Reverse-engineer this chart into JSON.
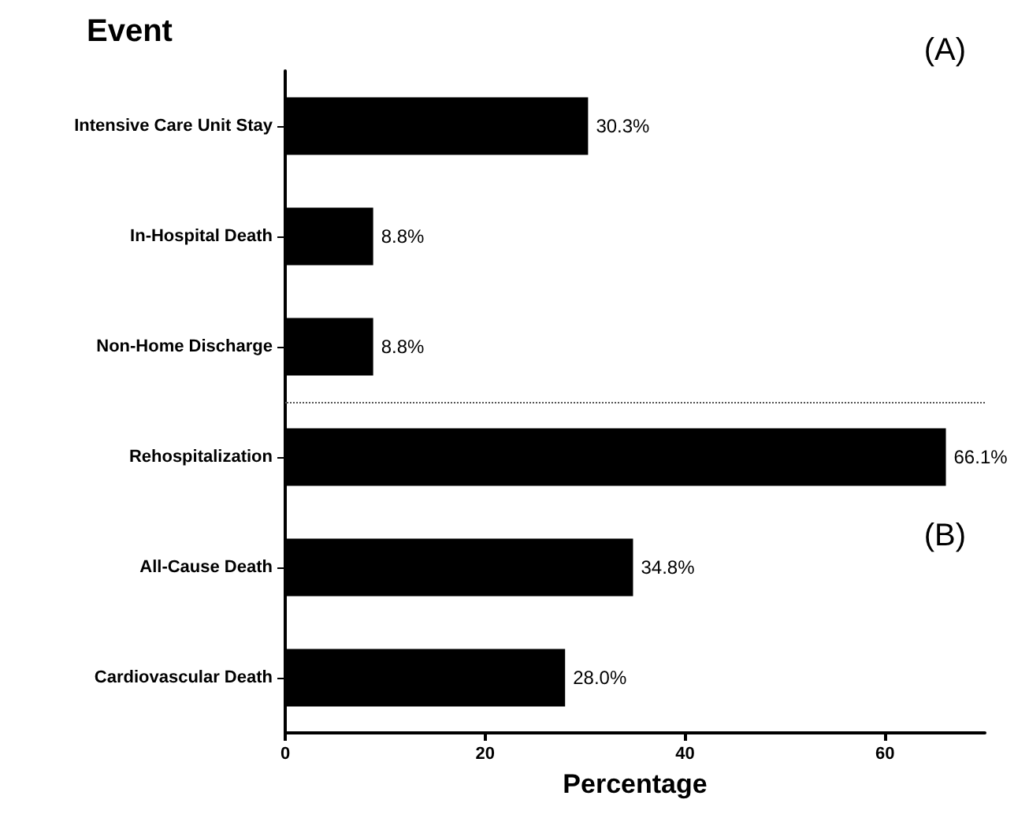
{
  "chart_data": {
    "type": "bar",
    "orientation": "horizontal",
    "ylabel": "Event",
    "xlabel": "Percentage",
    "categories": [
      "Intensive Care Unit Stay",
      "In-Hospital Death",
      "Non-Home Discharge",
      "Rehospitalization",
      "All-Cause Death",
      "Cardiovascular Death"
    ],
    "values": [
      30.3,
      8.8,
      8.8,
      66.1,
      34.8,
      28.0
    ],
    "value_labels": [
      "30.3%",
      "8.8%",
      "8.8%",
      "66.1%",
      "34.8%",
      "28.0%"
    ],
    "color": "#000000",
    "xlim": [
      0,
      70
    ],
    "xticks": [
      0,
      20,
      40,
      60
    ],
    "grid": false,
    "annotations": [
      "(A)",
      "(B)"
    ]
  }
}
